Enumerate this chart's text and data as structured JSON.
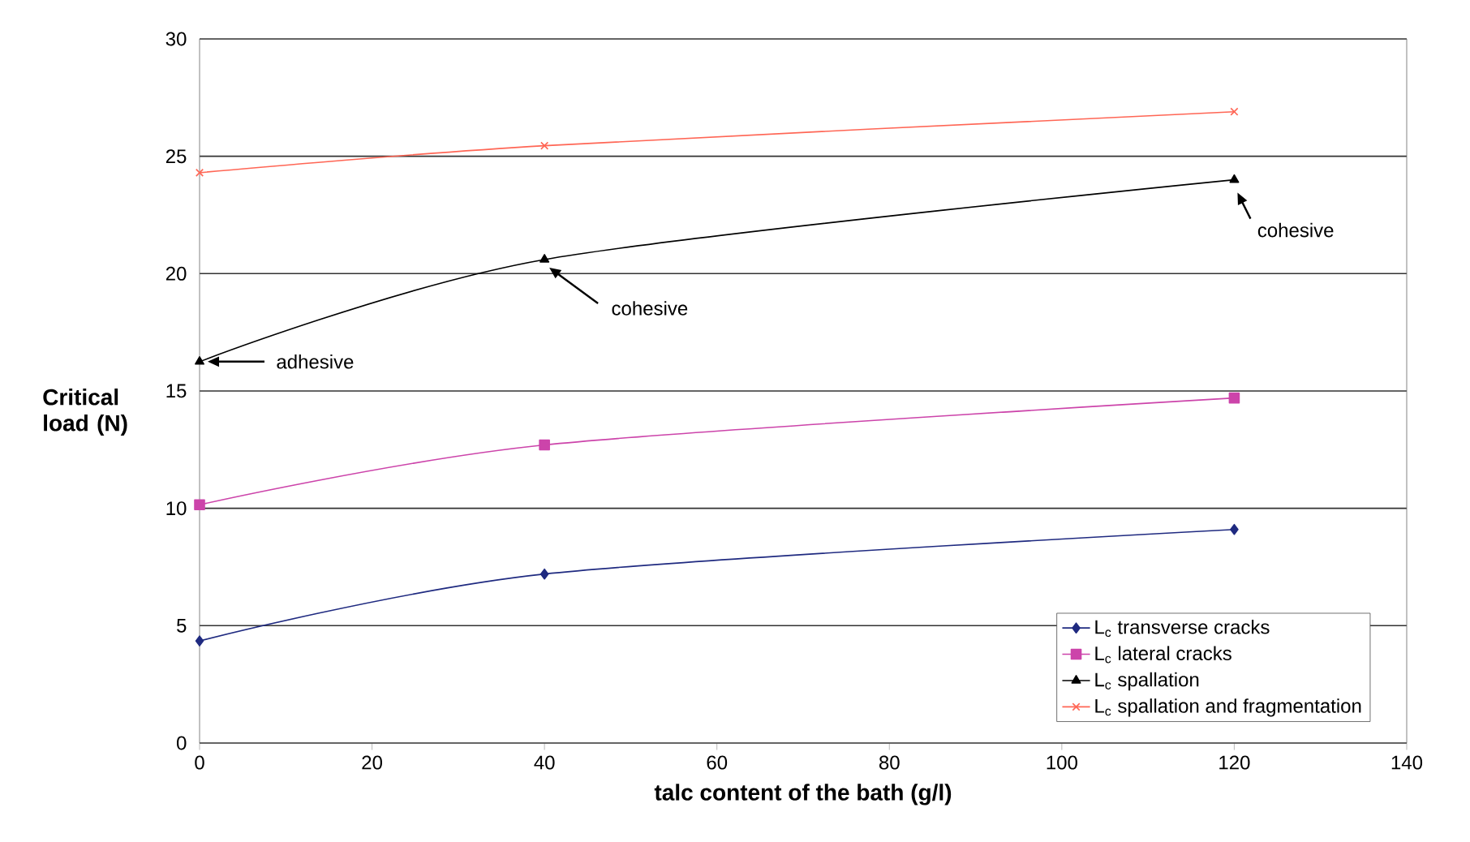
{
  "chart_data": {
    "type": "line",
    "xlabel": "talc content of the bath (g/l)",
    "ylabel": "Critical load (N)",
    "x": [
      0,
      40,
      120
    ],
    "series": [
      {
        "name": "L$_{c}$ transverse cracks",
        "color": "#1f2a80",
        "marker": "diamond",
        "values": [
          4.35,
          7.2,
          9.1
        ]
      },
      {
        "name": "L$_{c}$ lateral cracks",
        "color": "#cc44aa",
        "marker": "square",
        "values": [
          10.15,
          12.7,
          14.7
        ]
      },
      {
        "name": "L$_{c}$ spallation",
        "color": "#000000",
        "marker": "triangle",
        "values": [
          16.25,
          20.6,
          24.0
        ]
      },
      {
        "name": "L$_{c}$ spallation and fragmentation",
        "color": "#ff6655",
        "marker": "cross",
        "values": [
          24.3,
          25.45,
          26.9
        ]
      }
    ],
    "xlim": [
      0,
      140
    ],
    "xticks": [
      0,
      20,
      40,
      60,
      80,
      100,
      120,
      140
    ],
    "ylim": [
      0,
      30
    ],
    "yticks": [
      0,
      5,
      10,
      15,
      20,
      25,
      30
    ],
    "grid": "y",
    "legend": "bottom right",
    "line_style": "solid",
    "annotations": [
      "adhesive",
      "cohesive",
      {
        "text": "cohesive",
        "x": 120,
        "y": 24.0
      }
    ]
  }
}
